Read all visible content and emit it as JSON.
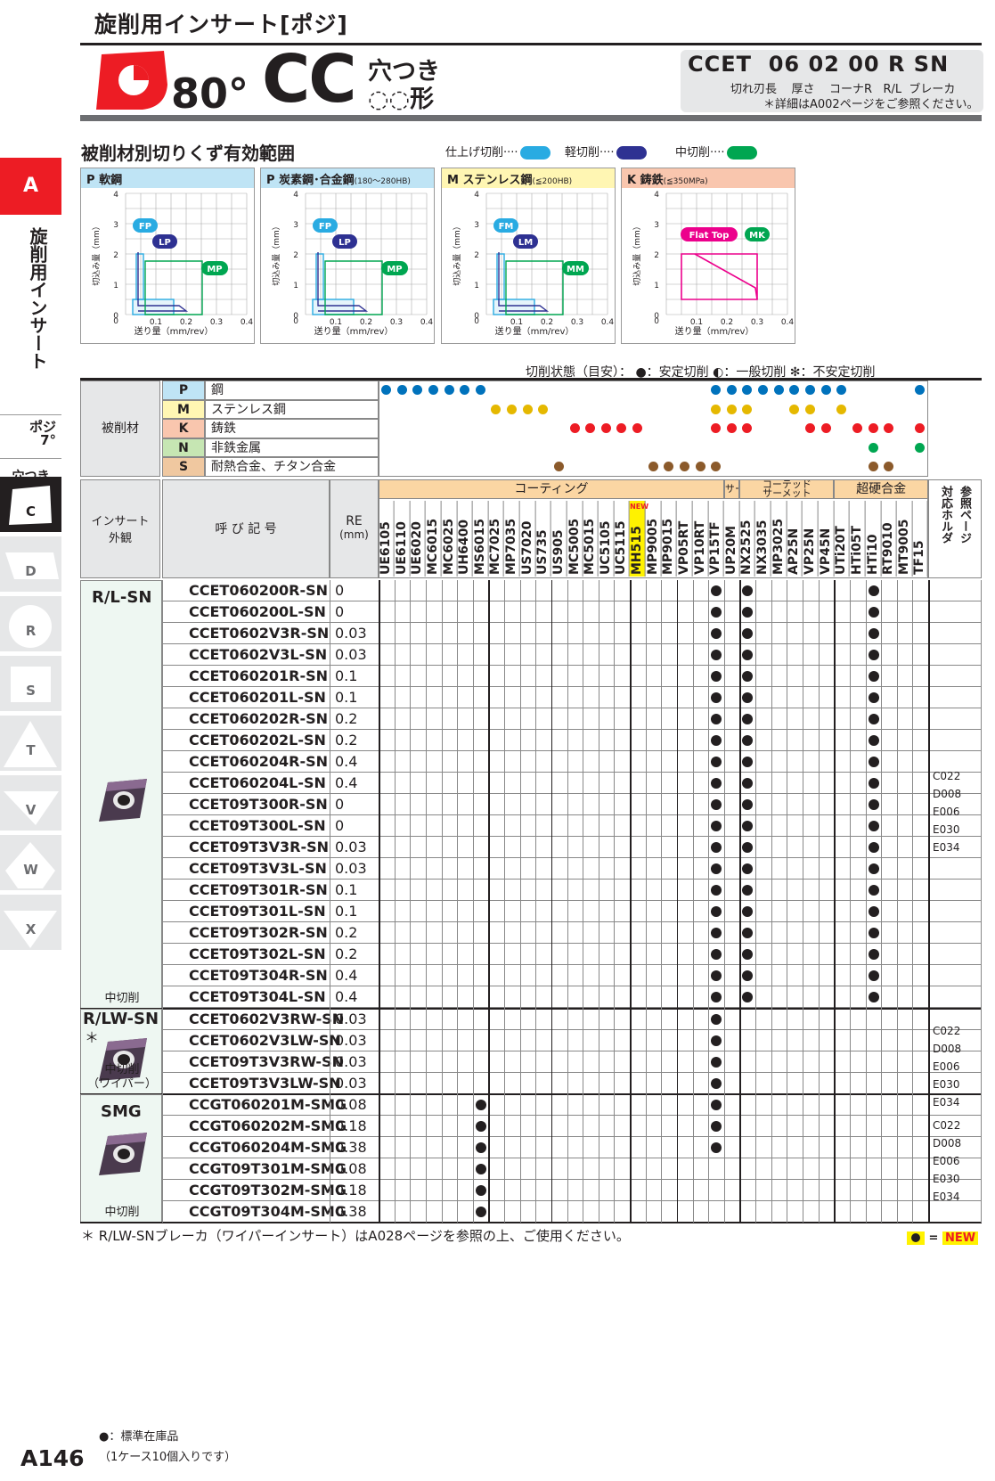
{
  "header": {
    "title": "旋削用インサート[ポジ]",
    "angle": "80°",
    "shape_code": "CC",
    "sub_top": "穴つき",
    "sub_bottom": "◌◌形",
    "code_main": "CCET  06 02 00 R SN",
    "code_parts": "切れ刃長    厚さ    コーナR   R/L  ブレーカ",
    "code_note": "＊詳細はA002ページをご参照ください。"
  },
  "section_title": "被削材別切りくず有効範囲",
  "legend": {
    "finish": "仕上げ切削",
    "light": "軽切削",
    "medium": "中切削",
    "finish_color": "#29abe2",
    "light_color": "#2e3192",
    "medium_color": "#00a651"
  },
  "charts": [
    {
      "tag": "P",
      "title": "軟鋼",
      "cond": "",
      "header_color": "#bfe4f5",
      "labels": [
        "FP",
        "LP",
        "MP"
      ]
    },
    {
      "tag": "P",
      "title": "炭素鋼･合金鋼",
      "cond": "(180～280HB)",
      "header_color": "#bfe4f5",
      "labels": [
        "FP",
        "LP",
        "MP"
      ]
    },
    {
      "tag": "M",
      "title": "ステンレス鋼",
      "cond": "(≦200HB)",
      "header_color": "#fff6b3",
      "labels": [
        "FM",
        "LM",
        "MM"
      ]
    },
    {
      "tag": "K",
      "title": "鋳鉄",
      "cond": "(≦350MPa)",
      "header_color": "#f9c6ae",
      "labels": [
        "Flat Top",
        "MK"
      ]
    }
  ],
  "chart_axes": {
    "ylabel": "切込み量（mm）",
    "xlabel": "送り量（mm/rev）",
    "yticks": [
      "0",
      "1",
      "2",
      "3",
      "4"
    ],
    "xticks": [
      "0.1",
      "0.2",
      "0.3",
      "0.4"
    ]
  },
  "sidebar": {
    "section": "A",
    "label": "旋削用インサート",
    "posi": "ポジ",
    "posi_angle": "7°",
    "hole": "穴つき",
    "tabs": [
      "C",
      "D",
      "R",
      "S",
      "T",
      "V",
      "W",
      "X"
    ]
  },
  "cut_state": "切削状態（目安）：  ●：安定切削    ◐：一般切削    ✻：不安定切削",
  "materials_label": "被削材",
  "materials": [
    {
      "code": "P",
      "name": "鋼",
      "color": "#bfe4f5"
    },
    {
      "code": "M",
      "name": "ステンレス鋼",
      "color": "#fff6b3"
    },
    {
      "code": "K",
      "name": "鋳鉄",
      "color": "#f9c6ae"
    },
    {
      "code": "N",
      "name": "非鉄金属",
      "color": "#c6e6b3"
    },
    {
      "code": "S",
      "name": "耐熱合金、チタン合金",
      "color": "#f0c8a0"
    }
  ],
  "col_headers": {
    "insert": "インサート\n外観",
    "designation": "呼 び 記 号",
    "re": "RE",
    "re_unit": "(mm)",
    "coating": "コーティング",
    "cermet": "サーメット",
    "coated_cermet": "コーテッド\nサーメット",
    "carbide": "超硬合金",
    "ref": "参照ページ",
    "holder": "対応ホルダ",
    "new": "NEW"
  },
  "grades": [
    "UE6105",
    "UE6110",
    "UE6020",
    "MC6015",
    "MC6025",
    "UH6400",
    "MS6015",
    "MC7025",
    "MP7035",
    "US7020",
    "US735",
    "US905",
    "MC5005",
    "MC5015",
    "UC5105",
    "UC5115",
    "MH515",
    "MP9005",
    "MP9015",
    "VP05RT",
    "VP10RT",
    "VP15TF",
    "UP20M",
    "NX2525",
    "NX3035",
    "MP3025",
    "AP25N",
    "VP25N",
    "VP45N",
    "UTi20T",
    "HTi05T",
    "HTi10",
    "RT9010",
    "MT9005",
    "TF15"
  ],
  "groups": [
    {
      "name": "R/L-SN",
      "note": "中切削",
      "refs": [
        "C022",
        "D008",
        "E006",
        "E030",
        "E034"
      ],
      "rows": [
        {
          "code": "CCET060200R-SN",
          "re": "0"
        },
        {
          "code": "CCET060200L-SN",
          "re": "0"
        },
        {
          "code": "CCET0602V3R-SN",
          "re": "0.03"
        },
        {
          "code": "CCET0602V3L-SN",
          "re": "0.03"
        },
        {
          "code": "CCET060201R-SN",
          "re": "0.1"
        },
        {
          "code": "CCET060201L-SN",
          "re": "0.1"
        },
        {
          "code": "CCET060202R-SN",
          "re": "0.2"
        },
        {
          "code": "CCET060202L-SN",
          "re": "0.2"
        },
        {
          "code": "CCET060204R-SN",
          "re": "0.4"
        },
        {
          "code": "CCET060204L-SN",
          "re": "0.4"
        },
        {
          "code": "CCET09T300R-SN",
          "re": "0"
        },
        {
          "code": "CCET09T300L-SN",
          "re": "0"
        },
        {
          "code": "CCET09T3V3R-SN",
          "re": "0.03"
        },
        {
          "code": "CCET09T3V3L-SN",
          "re": "0.03"
        },
        {
          "code": "CCET09T301R-SN",
          "re": "0.1"
        },
        {
          "code": "CCET09T301L-SN",
          "re": "0.1"
        },
        {
          "code": "CCET09T302R-SN",
          "re": "0.2"
        },
        {
          "code": "CCET09T302L-SN",
          "re": "0.2"
        },
        {
          "code": "CCET09T304R-SN",
          "re": "0.4"
        },
        {
          "code": "CCET09T304L-SN",
          "re": "0.4"
        }
      ],
      "dots": [
        21,
        23,
        31
      ]
    },
    {
      "name": "R/LW-SN",
      "star": "＊",
      "note": "中切削\n（ワイパー）",
      "refs": [
        "C022",
        "D008",
        "E006",
        "E030",
        "E034"
      ],
      "rows": [
        {
          "code": "CCET0602V3RW-SN",
          "re": "0.03"
        },
        {
          "code": "CCET0602V3LW-SN",
          "re": "0.03"
        },
        {
          "code": "CCET09T3V3RW-SN",
          "re": "0.03"
        },
        {
          "code": "CCET09T3V3LW-SN",
          "re": "0.03"
        }
      ],
      "dots": [
        21
      ]
    },
    {
      "name": "SMG",
      "note": "中切削",
      "refs": [
        "C022",
        "D008",
        "E006",
        "E030",
        "E034"
      ],
      "rows": [
        {
          "code": "CCGT060201M-SMG",
          "re": "0.08"
        },
        {
          "code": "CCGT060202M-SMG",
          "re": "0.18"
        },
        {
          "code": "CCGT060204M-SMG",
          "re": "0.38"
        },
        {
          "code": "CCGT09T301M-SMG",
          "re": "0.08"
        },
        {
          "code": "CCGT09T302M-SMG",
          "re": "0.18"
        },
        {
          "code": "CCGT09T304M-SMG",
          "re": "0.38"
        }
      ],
      "dots": [
        6
      ]
    }
  ],
  "smg_vp15tf_rows": [
    0,
    1,
    2
  ],
  "footnote": "＊ R/LW-SNブレーカ（ワイパーインサート）はA028ページを参照の上、ご使用ください。",
  "new_badge": "NEW",
  "stock_note1": "●：標準在庫品",
  "stock_note2": "（1ケース10個入りです）",
  "page_number": "A146"
}
